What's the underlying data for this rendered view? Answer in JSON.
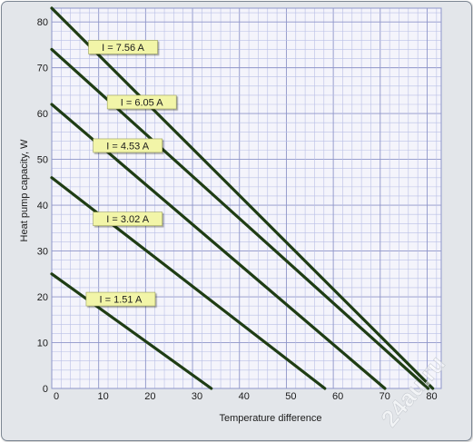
{
  "chart_data": {
    "type": "line",
    "title": "",
    "xlabel": "Temperature difference",
    "ylabel": "Heat pump capacity, W",
    "xlim": [
      0,
      83
    ],
    "ylim": [
      0,
      83
    ],
    "x_ticks": [
      0,
      10,
      20,
      30,
      40,
      50,
      60,
      70,
      80
    ],
    "y_ticks": [
      0,
      10,
      20,
      30,
      40,
      50,
      60,
      70,
      80
    ],
    "grid": true,
    "colors": {
      "line": "#1f3d14",
      "label_bg": "#f2f5a8",
      "grid_minor": "#b9bfe6",
      "grid_major": "#8e95c9",
      "plot_bg": "#f4f4fb"
    },
    "series": [
      {
        "name": "I = 7.56 A",
        "x": [
          0,
          81.2
        ],
        "y": [
          83,
          0
        ],
        "label_at": [
          9,
          74.5
        ]
      },
      {
        "name": "I = 6.05 A",
        "x": [
          0,
          80.2
        ],
        "y": [
          74,
          0
        ],
        "label_at": [
          13,
          62.5
        ]
      },
      {
        "name": "I = 4.53 A",
        "x": [
          0,
          71.0
        ],
        "y": [
          62,
          0
        ],
        "label_at": [
          10,
          53
        ]
      },
      {
        "name": "I = 3.02 A",
        "x": [
          0,
          58.2
        ],
        "y": [
          46,
          0
        ],
        "label_at": [
          10,
          37
        ]
      },
      {
        "name": "I = 1.51 A",
        "x": [
          0,
          34.0
        ],
        "y": [
          25,
          0
        ],
        "label_at": [
          8.5,
          19.5
        ]
      }
    ],
    "watermark": "24au.ru"
  }
}
